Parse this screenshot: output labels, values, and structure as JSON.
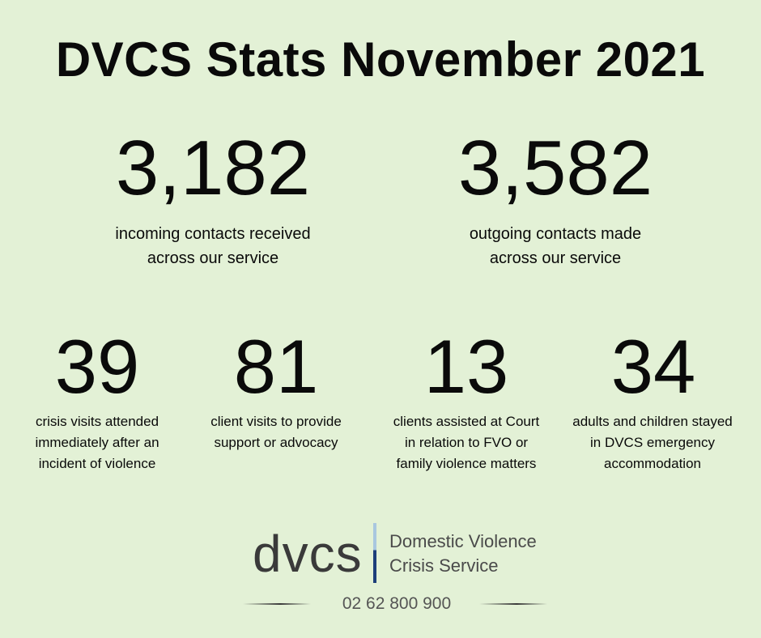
{
  "title": "DVCS Stats November 2021",
  "headline_stats": [
    {
      "value": "3,182",
      "caption_line1": "incoming contacts received",
      "caption_line2": "across our service"
    },
    {
      "value": "3,582",
      "caption_line1": "outgoing contacts made",
      "caption_line2": "across our service"
    }
  ],
  "detail_stats": [
    {
      "value": "39",
      "lines": [
        "crisis visits attended",
        "immediately after an",
        "incident of violence"
      ]
    },
    {
      "value": "81",
      "lines": [
        "client visits to provide",
        "support or advocacy"
      ]
    },
    {
      "value": "13",
      "lines": [
        "clients assisted at Court",
        "in relation to FVO or",
        "family violence matters"
      ]
    },
    {
      "value": "34",
      "lines": [
        "adults and children stayed",
        "in DVCS emergency",
        "accommodation"
      ]
    }
  ],
  "logo": {
    "wordmark": "dvcs",
    "line1": "Domestic Violence",
    "line2": "Crisis Service"
  },
  "phone": "02 62 800 900",
  "colors": {
    "background": "#e3f1d6",
    "text": "#0a0a0a",
    "logo_bar_top": "#a9c7df",
    "logo_bar_bottom": "#1d3f7a"
  }
}
